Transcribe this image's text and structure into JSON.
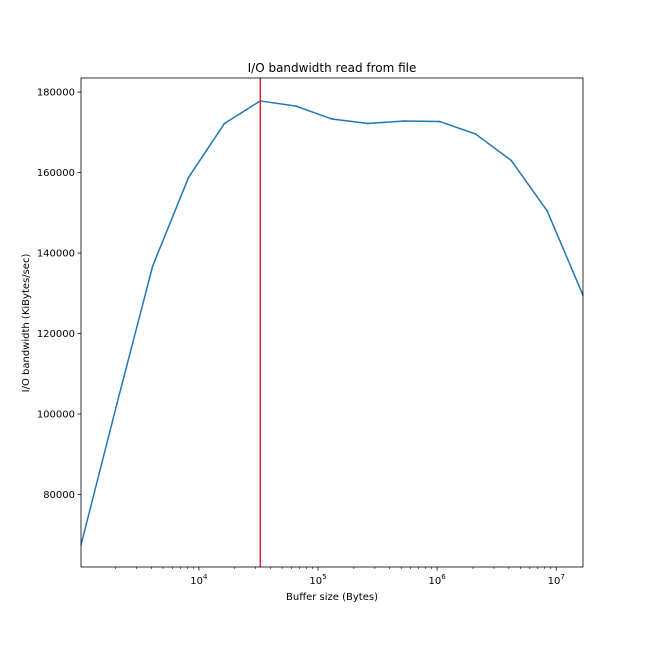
{
  "chart_data": {
    "type": "line",
    "title": "I/O bandwidth read from file",
    "xlabel": "Buffer size (Bytes)",
    "ylabel": "I/O bandwidth (KiBytes/sec)",
    "x_scale": "log",
    "xlim": [
      1024,
      16777216
    ],
    "ylim": [
      62000,
      183500
    ],
    "grid": false,
    "x_ticks": [
      {
        "value": 10000,
        "base": "10",
        "exp": "4"
      },
      {
        "value": 100000,
        "base": "10",
        "exp": "5"
      },
      {
        "value": 1000000,
        "base": "10",
        "exp": "6"
      },
      {
        "value": 10000000,
        "base": "10",
        "exp": "7"
      }
    ],
    "y_ticks": [
      {
        "value": 80000,
        "label": "80000"
      },
      {
        "value": 100000,
        "label": "100000"
      },
      {
        "value": 120000,
        "label": "120000"
      },
      {
        "value": 140000,
        "label": "140000"
      },
      {
        "value": 160000,
        "label": "160000"
      },
      {
        "value": 180000,
        "label": "180000"
      }
    ],
    "series": [
      {
        "color": "#1f77b4",
        "x": [
          1024,
          2048,
          4096,
          8192,
          16384,
          32768,
          65536,
          131072,
          262144,
          524288,
          1048576,
          2097152,
          4194304,
          8388608,
          16777216
        ],
        "y": [
          67500,
          102500,
          136800,
          158800,
          172200,
          177800,
          176500,
          173300,
          172200,
          172800,
          172700,
          169600,
          163000,
          150500,
          129500
        ]
      }
    ],
    "vline": {
      "x": 32768,
      "color": "#d62728"
    }
  }
}
